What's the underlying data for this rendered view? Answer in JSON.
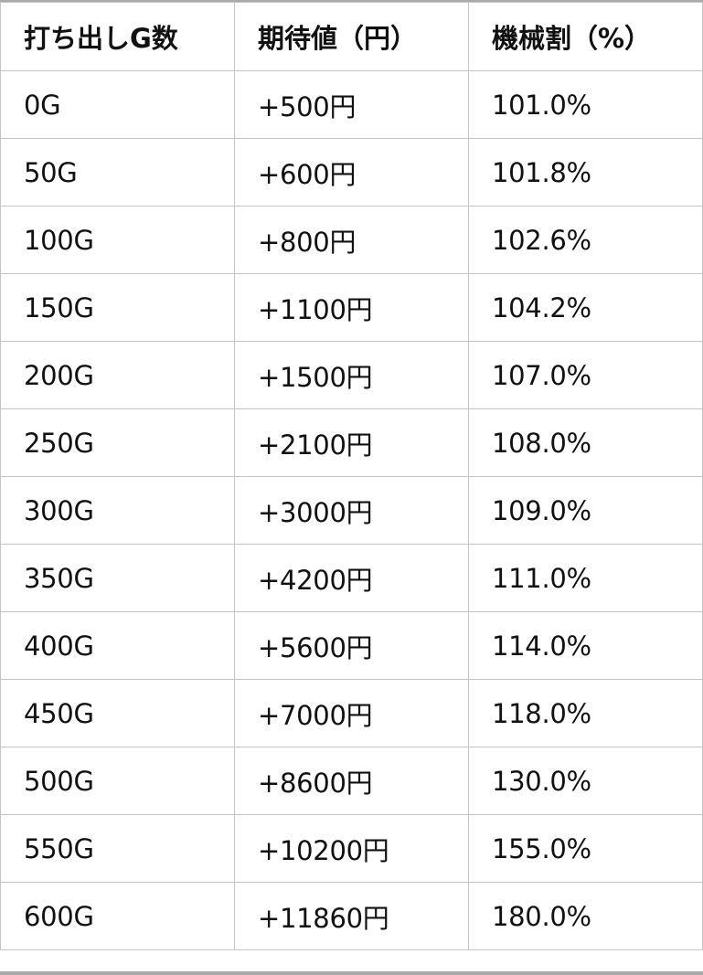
{
  "table": {
    "headers": [
      "打ち出しG数",
      "期待値（円）",
      "機械割（%）"
    ],
    "rows": [
      [
        "0G",
        "+500円",
        "101.0%"
      ],
      [
        "50G",
        "+600円",
        "101.8%"
      ],
      [
        "100G",
        "+800円",
        "102.6%"
      ],
      [
        "150G",
        "+1100円",
        "104.2%"
      ],
      [
        "200G",
        "+1500円",
        "107.0%"
      ],
      [
        "250G",
        "+2100円",
        "108.0%"
      ],
      [
        "300G",
        "+3000円",
        "109.0%"
      ],
      [
        "350G",
        "+4200円",
        "111.0%"
      ],
      [
        "400G",
        "+5600円",
        "114.0%"
      ],
      [
        "450G",
        "+7000円",
        "118.0%"
      ],
      [
        "500G",
        "+8600円",
        "130.0%"
      ],
      [
        "550G",
        "+10200円",
        "155.0%"
      ],
      [
        "600G",
        "+11860円",
        "180.0%"
      ]
    ]
  }
}
